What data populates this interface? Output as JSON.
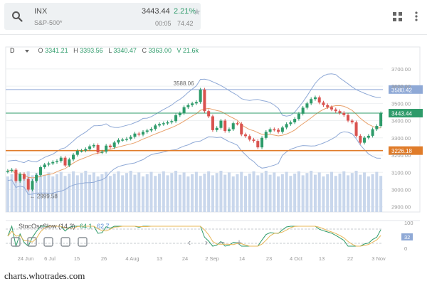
{
  "quote": {
    "symbol": "INX",
    "name": "S&P-500*",
    "price": "3443.44",
    "change_pct": "2.21%",
    "time": "00:05",
    "change": "74.42"
  },
  "toolbar": {
    "timeframe": "D",
    "open_label": "O",
    "open": "3341.21",
    "high_label": "H",
    "high": "3393.56",
    "low_label": "L",
    "low": "3340.47",
    "close_label": "C",
    "close": "3363.00",
    "volume": "V 21.6k"
  },
  "oscillator": {
    "name": "StocOscSlow (14,3)",
    "k": "64.1",
    "d": "62.7",
    "ticks": [
      "100",
      "32",
      "0"
    ]
  },
  "footer": "charts.whotrades.com",
  "colors": {
    "up": "#2e9b6a",
    "down": "#d9534f",
    "ma": "#e8a06a",
    "bands": "#8fa9d6",
    "support": "#e07c2a",
    "price_line": "#2e9b6a",
    "volume": "#c9d7ec",
    "osc_k": "#2e9b6a",
    "osc_d": "#e8b85a"
  },
  "chart_data": {
    "type": "candlestick",
    "x_tick_labels": [
      "24 Jun",
      "6 Jul",
      "15",
      "26",
      "4 Aug",
      "13",
      "24",
      "2 Sep",
      "14",
      "23",
      "4 Oct",
      "13",
      "22",
      "3 Nov"
    ],
    "y_ticks": [
      2900,
      3000,
      3100,
      3200,
      3300,
      3400,
      3500,
      3600,
      3700
    ],
    "y_tick_labels": [
      "2900.00",
      "3000.00",
      "3100.00",
      "3200.00",
      "3300.00",
      "3400.00",
      "3500.00",
      "3600.00",
      "3700.00"
    ],
    "ylim": [
      2870,
      3720
    ],
    "annotations": [
      {
        "label": "3588.06",
        "value": 3588.06
      },
      {
        "label": "2999.58",
        "value": 2999.58
      }
    ],
    "levels": [
      {
        "label": "3580.42",
        "value": 3580.42
      },
      {
        "label": "3443.44",
        "value": 3443.44
      },
      {
        "label": "3226.18",
        "value": 3226.18
      }
    ],
    "close": [
      3109,
      3115,
      3050,
      3090,
      3062,
      3000,
      3050,
      3085,
      3130,
      3145,
      3152,
      3160,
      3166,
      3185,
      3140,
      3175,
      3202,
      3225,
      3226,
      3235,
      3251,
      3258,
      3216,
      3220,
      3255,
      3246,
      3273,
      3288,
      3290,
      3295,
      3306,
      3325,
      3319,
      3335,
      3343,
      3352,
      3372,
      3380,
      3385,
      3390,
      3397,
      3431,
      3443,
      3478,
      3490,
      3500,
      3508,
      3580,
      3455,
      3425,
      3345,
      3358,
      3400,
      3340,
      3350,
      3385,
      3382,
      3320,
      3310,
      3290,
      3282,
      3245,
      3300,
      3335,
      3350,
      3347,
      3335,
      3360,
      3380,
      3390,
      3410,
      3440,
      3475,
      3500,
      3525,
      3535,
      3505,
      3490,
      3478,
      3465,
      3455,
      3445,
      3432,
      3400,
      3390,
      3312,
      3272,
      3301,
      3312,
      3350,
      3369,
      3443
    ]
  }
}
